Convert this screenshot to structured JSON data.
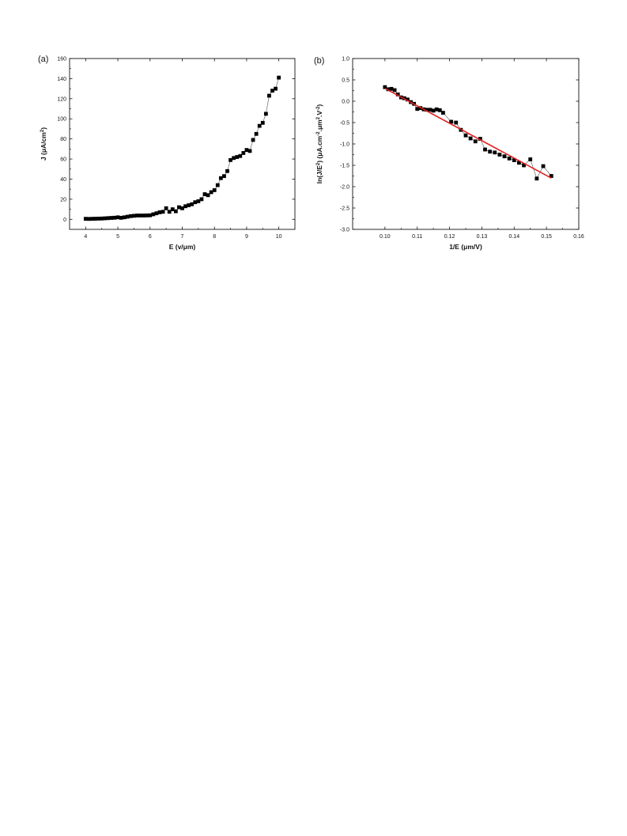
{
  "chart_data": [
    {
      "type": "scatter",
      "panel_label": "(a)",
      "xlabel": "E (v/μm)",
      "ylabel_parts": [
        "J (μA/cm",
        "2",
        ")"
      ],
      "xlim": [
        3.5,
        10.5
      ],
      "ylim": [
        -10,
        160
      ],
      "x_ticks": [
        4,
        5,
        6,
        7,
        8,
        9,
        10
      ],
      "y_ticks": [
        0,
        20,
        40,
        60,
        80,
        100,
        120,
        140,
        160
      ],
      "series": [
        {
          "color": "#000000",
          "marker": "square",
          "connected": true,
          "x": [
            4.0,
            4.1,
            4.2,
            4.3,
            4.4,
            4.5,
            4.6,
            4.7,
            4.8,
            4.9,
            5.0,
            5.1,
            5.2,
            5.3,
            5.4,
            5.5,
            5.6,
            5.7,
            5.8,
            5.9,
            6.0,
            6.1,
            6.2,
            6.3,
            6.4,
            6.5,
            6.6,
            6.7,
            6.8,
            6.9,
            7.0,
            7.1,
            7.2,
            7.3,
            7.4,
            7.5,
            7.6,
            7.7,
            7.8,
            7.9,
            8.0,
            8.1,
            8.2,
            8.3,
            8.4,
            8.5,
            8.6,
            8.7,
            8.8,
            8.9,
            9.0,
            9.1,
            9.2,
            9.3,
            9.4,
            9.5,
            9.6,
            9.7,
            9.8,
            9.9,
            10.0
          ],
          "y": [
            0.5,
            0.4,
            0.5,
            0.6,
            0.7,
            0.8,
            1.0,
            1.2,
            1.4,
            1.6,
            2.0,
            1.5,
            2.0,
            2.6,
            3.2,
            3.5,
            3.8,
            3.8,
            3.8,
            3.9,
            4.0,
            5.0,
            6.0,
            7.0,
            7.5,
            11,
            7.5,
            10,
            8,
            12,
            11,
            13,
            14,
            15,
            17,
            18,
            20,
            25,
            24,
            27,
            29,
            34,
            41,
            43,
            48,
            59,
            61,
            62,
            63,
            66,
            69,
            68,
            79,
            85,
            93,
            96,
            105,
            123,
            128,
            130,
            141
          ]
        }
      ]
    },
    {
      "type": "scatter",
      "panel_label": "(b)",
      "xlabel": "1/E (μm/V)",
      "ylabel_parts": [
        "ln(J/E",
        "2",
        ") (μA.cm",
        "-2",
        ".μm",
        "2",
        ".V",
        "-2",
        ")"
      ],
      "xlim": [
        0.09,
        0.16
      ],
      "ylim": [
        -3.0,
        1.0
      ],
      "x_ticks": [
        0.1,
        0.11,
        0.12,
        0.13,
        0.14,
        0.15,
        0.16
      ],
      "x_tick_labels": [
        "0.10",
        "0.11",
        "0.12",
        "0.13",
        "0.14",
        "0.15",
        "0.16"
      ],
      "y_ticks": [
        1.0,
        0.5,
        0.0,
        -0.5,
        -1.0,
        -1.5,
        -2.0,
        -2.5,
        -3.0
      ],
      "y_tick_labels": [
        "1.0",
        "0.5",
        "0.0",
        "-0.5",
        "-1.0",
        "-1.5",
        "-2.0",
        "-2.5",
        "-3.0"
      ],
      "series": [
        {
          "color": "#000000",
          "marker": "square",
          "connected": true,
          "x": [
            0.1,
            0.101,
            0.102,
            0.103,
            0.104,
            0.105,
            0.106,
            0.107,
            0.108,
            0.109,
            0.11,
            0.111,
            0.112,
            0.113,
            0.114,
            0.115,
            0.116,
            0.117,
            0.118,
            0.1205,
            0.122,
            0.1235,
            0.125,
            0.1265,
            0.128,
            0.1295,
            0.131,
            0.1325,
            0.134,
            0.1355,
            0.137,
            0.1385,
            0.14,
            0.1415,
            0.143,
            0.145,
            0.147,
            0.149,
            0.1515
          ],
          "y": [
            0.33,
            0.28,
            0.29,
            0.26,
            0.16,
            0.09,
            0.07,
            0.04,
            -0.02,
            -0.06,
            -0.18,
            -0.16,
            -0.19,
            -0.2,
            -0.2,
            -0.22,
            -0.19,
            -0.21,
            -0.27,
            -0.48,
            -0.5,
            -0.67,
            -0.8,
            -0.87,
            -0.94,
            -0.88,
            -1.13,
            -1.18,
            -1.2,
            -1.25,
            -1.29,
            -1.34,
            -1.38,
            -1.44,
            -1.5,
            -1.36,
            -1.81,
            -1.52,
            -1.75
          ]
        },
        {
          "type": "line",
          "color": "#e02020",
          "x": [
            0.1,
            0.1515
          ],
          "y": [
            0.3,
            -1.8
          ]
        }
      ]
    }
  ]
}
